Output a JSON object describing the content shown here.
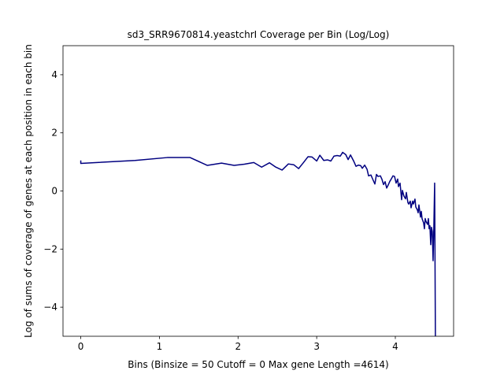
{
  "chart_data": {
    "type": "line",
    "title": "sd3_SRR9670814.yeastchrI Coverage per Bin (Log/Log)",
    "xlabel": "Bins  (Binsize = 50 Cutoff = 0 Max gene Length =4614)",
    "ylabel": "Log of sums of coverage of genes at each position in each bin",
    "xlim": [
      -0.226,
      4.741
    ],
    "ylim": [
      -5,
      5
    ],
    "xticks": [
      0,
      1,
      2,
      3,
      4
    ],
    "yticks": [
      -4,
      -2,
      0,
      2,
      4
    ],
    "grid": false,
    "series": [
      {
        "color": "#000080",
        "points": [
          [
            0.0,
            1.05
          ],
          [
            0.0,
            0.95
          ],
          [
            0.69,
            1.05
          ],
          [
            1.1,
            1.15
          ],
          [
            1.39,
            1.15
          ],
          [
            1.61,
            0.88
          ],
          [
            1.79,
            0.96
          ],
          [
            1.95,
            0.88
          ],
          [
            2.08,
            0.92
          ],
          [
            2.2,
            0.98
          ],
          [
            2.3,
            0.82
          ],
          [
            2.4,
            0.97
          ],
          [
            2.48,
            0.82
          ],
          [
            2.56,
            0.72
          ],
          [
            2.64,
            0.93
          ],
          [
            2.71,
            0.9
          ],
          [
            2.77,
            0.77
          ],
          [
            2.83,
            0.97
          ],
          [
            2.89,
            1.18
          ],
          [
            2.94,
            1.17
          ],
          [
            3.0,
            1.03
          ],
          [
            3.04,
            1.23
          ],
          [
            3.09,
            1.05
          ],
          [
            3.14,
            1.07
          ],
          [
            3.18,
            1.03
          ],
          [
            3.22,
            1.2
          ],
          [
            3.26,
            1.22
          ],
          [
            3.3,
            1.2
          ],
          [
            3.33,
            1.33
          ],
          [
            3.37,
            1.25
          ],
          [
            3.4,
            1.08
          ],
          [
            3.43,
            1.24
          ],
          [
            3.47,
            1.03
          ],
          [
            3.5,
            0.85
          ],
          [
            3.53,
            0.89
          ],
          [
            3.56,
            0.87
          ],
          [
            3.58,
            0.78
          ],
          [
            3.61,
            0.89
          ],
          [
            3.64,
            0.75
          ],
          [
            3.66,
            0.52
          ],
          [
            3.69,
            0.55
          ],
          [
            3.71,
            0.42
          ],
          [
            3.74,
            0.24
          ],
          [
            3.76,
            0.57
          ],
          [
            3.78,
            0.5
          ],
          [
            3.81,
            0.52
          ],
          [
            3.83,
            0.4
          ],
          [
            3.85,
            0.22
          ],
          [
            3.87,
            0.32
          ],
          [
            3.89,
            0.1
          ],
          [
            3.91,
            0.21
          ],
          [
            3.93,
            0.33
          ],
          [
            3.95,
            0.42
          ],
          [
            3.97,
            0.52
          ],
          [
            3.99,
            0.5
          ],
          [
            4.01,
            0.27
          ],
          [
            4.03,
            0.41
          ],
          [
            4.04,
            0.15
          ],
          [
            4.06,
            0.27
          ],
          [
            4.08,
            -0.3
          ],
          [
            4.09,
            0.02
          ],
          [
            4.11,
            -0.18
          ],
          [
            4.13,
            -0.27
          ],
          [
            4.14,
            -0.05
          ],
          [
            4.16,
            -0.4
          ],
          [
            4.17,
            -0.45
          ],
          [
            4.19,
            -0.35
          ],
          [
            4.2,
            -0.58
          ],
          [
            4.22,
            -0.35
          ],
          [
            4.23,
            -0.45
          ],
          [
            4.25,
            -0.28
          ],
          [
            4.26,
            -0.55
          ],
          [
            4.28,
            -0.65
          ],
          [
            4.29,
            -0.75
          ],
          [
            4.3,
            -0.48
          ],
          [
            4.32,
            -0.9
          ],
          [
            4.33,
            -0.7
          ],
          [
            4.34,
            -0.95
          ],
          [
            4.36,
            -1.1
          ],
          [
            4.37,
            -1.3
          ],
          [
            4.38,
            -0.95
          ],
          [
            4.39,
            -1.05
          ],
          [
            4.41,
            -1.15
          ],
          [
            4.42,
            -0.95
          ],
          [
            4.43,
            -1.3
          ],
          [
            4.44,
            -1.2
          ],
          [
            4.45,
            -1.85
          ],
          [
            4.46,
            -1.25
          ],
          [
            4.47,
            -1.4
          ],
          [
            4.48,
            -2.4
          ],
          [
            4.49,
            -1.2
          ],
          [
            4.5,
            0.27
          ],
          [
            4.51,
            -5.3
          ]
        ]
      }
    ]
  }
}
